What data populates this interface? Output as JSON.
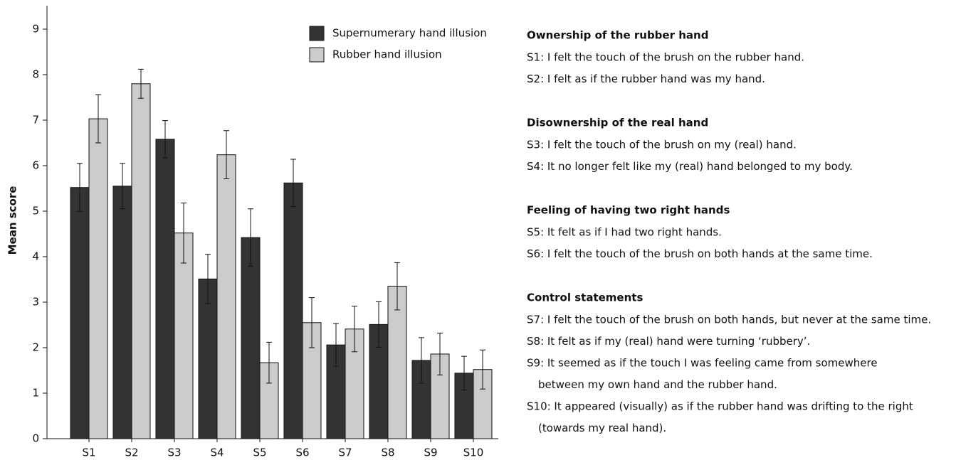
{
  "chart_data": {
    "type": "bar",
    "ylabel": "Mean score",
    "categories": [
      "S1",
      "S2",
      "S3",
      "S4",
      "S5",
      "S6",
      "S7",
      "S8",
      "S9",
      "S10"
    ],
    "series": [
      {
        "name": "Supernumerary hand illusion",
        "color": "#333333",
        "values": [
          5.52,
          5.55,
          6.58,
          3.51,
          4.42,
          5.62,
          2.06,
          2.51,
          1.72,
          1.44
        ],
        "errors": [
          0.53,
          0.5,
          0.41,
          0.54,
          0.63,
          0.52,
          0.47,
          0.5,
          0.5,
          0.37
        ]
      },
      {
        "name": "Rubber hand illusion",
        "color": "#cccccc",
        "values": [
          7.03,
          7.8,
          4.52,
          6.24,
          1.67,
          2.55,
          2.41,
          3.35,
          1.86,
          1.52
        ],
        "errors": [
          0.53,
          0.32,
          0.66,
          0.53,
          0.45,
          0.55,
          0.5,
          0.52,
          0.46,
          0.43
        ]
      }
    ],
    "ylim": [
      0,
      9.5
    ],
    "yticks": [
      0,
      1,
      2,
      3,
      4,
      5,
      6,
      7,
      8,
      9
    ],
    "grid": false,
    "legend": "top-right"
  },
  "statements": [
    {
      "heading": "Ownership of the rubber hand",
      "items": [
        [
          "S1: I felt the touch of the brush on the rubber hand."
        ],
        [
          "S2: I felt as if the rubber hand was my hand."
        ]
      ]
    },
    {
      "heading": "Disownership of the real hand",
      "items": [
        [
          "S3: I felt the touch of the brush on my (real) hand."
        ],
        [
          "S4: It no longer felt like my (real) hand belonged to my body."
        ]
      ]
    },
    {
      "heading": "Feeling of having two right hands",
      "items": [
        [
          "S5: It felt as if I had two right hands."
        ],
        [
          "S6: I felt the touch of the brush on both hands at the same time."
        ]
      ]
    },
    {
      "heading": "Control statements",
      "items": [
        [
          "S7: I felt the touch of the brush on both hands, but never at the same time."
        ],
        [
          "S8: It felt as if my (real) hand were turning ‘rubbery’."
        ],
        [
          "S9: It seemed as if the touch I was feeling came from somewhere",
          "between my own hand and the rubber hand."
        ],
        [
          "S10: It appeared (visually) as if the rubber hand was drifting to the right",
          "(towards my real hand)."
        ]
      ]
    }
  ]
}
